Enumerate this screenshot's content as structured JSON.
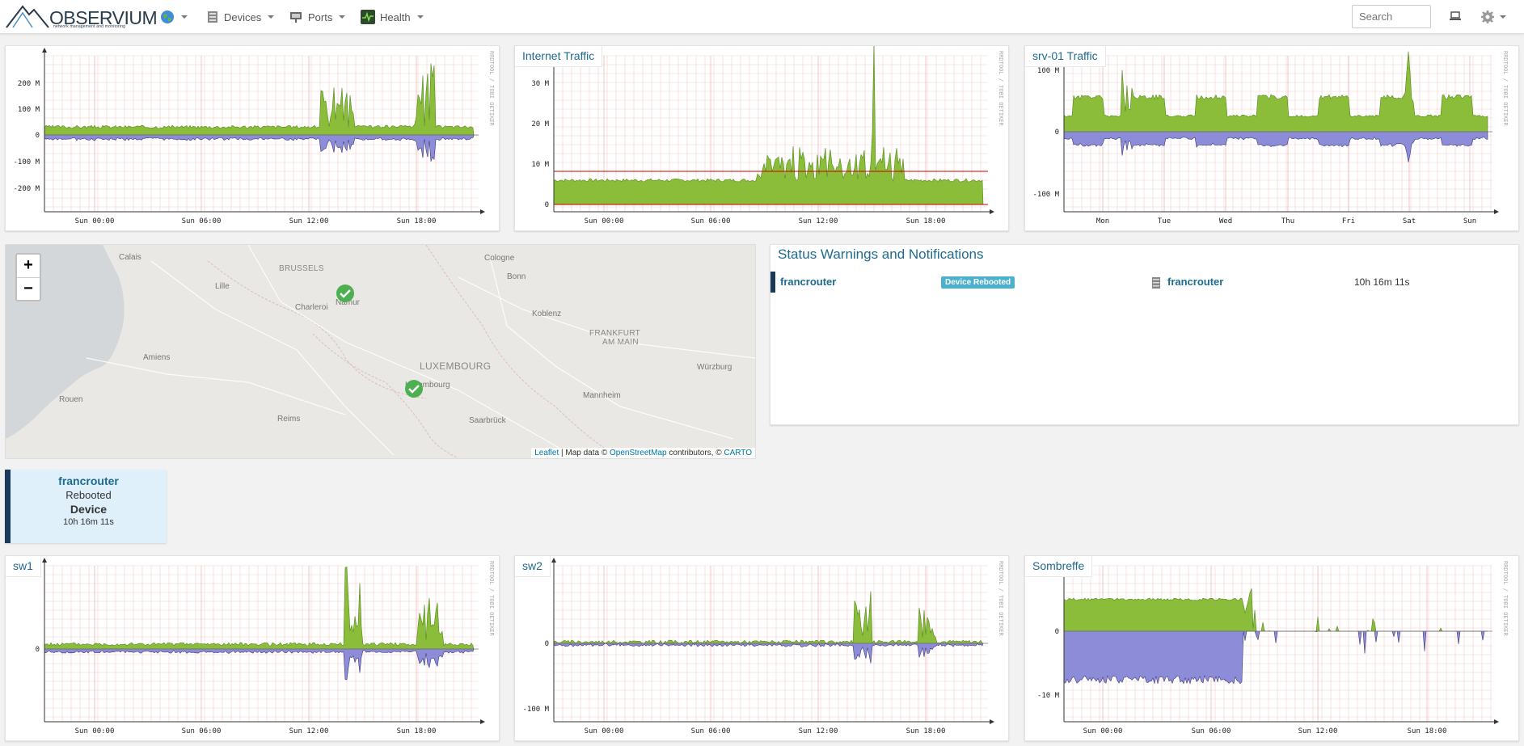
{
  "navbar": {
    "brand": "OBSERVIUM",
    "brand_sub": "network management and monitoring",
    "items": [
      {
        "label": "Devices"
      },
      {
        "label": "Ports"
      },
      {
        "label": "Health"
      }
    ],
    "search_placeholder": "Search"
  },
  "graphs": [
    {
      "title": "",
      "y_ticks": [
        "200 M",
        "100 M",
        "0",
        "-100 M",
        "-200 M"
      ],
      "x_ticks": [
        "Sun 00:00",
        "Sun 06:00",
        "Sun 12:00",
        "Sun 18:00"
      ],
      "watermark": "RRDTOOL / TOBI OETIKER"
    },
    {
      "title": "Internet Traffic",
      "y_ticks": [
        "30 M",
        "20 M",
        "10 M",
        "0"
      ],
      "x_ticks": [
        "Sun 00:00",
        "Sun 06:00",
        "Sun 12:00",
        "Sun 18:00"
      ],
      "watermark": "RRDTOOL / TOBI OETIKER"
    },
    {
      "title": "srv-01 Traffic",
      "y_ticks": [
        "100 M",
        "0",
        "-100 M"
      ],
      "x_ticks": [
        "Mon",
        "Tue",
        "Wed",
        "Thu",
        "Fri",
        "Sat",
        "Sun"
      ],
      "watermark": "RRDTOOL / TOBI OETIKER"
    },
    {
      "title": "sw1",
      "y_ticks": [
        "0"
      ],
      "x_ticks": [
        "Sun 00:00",
        "Sun 06:00",
        "Sun 12:00",
        "Sun 18:00"
      ],
      "watermark": "RRDTOOL / TOBI OETIKER"
    },
    {
      "title": "sw2",
      "y_ticks": [
        "0",
        "-100 M"
      ],
      "x_ticks": [
        "Sun 00:00",
        "Sun 06:00",
        "Sun 12:00",
        "Sun 18:00"
      ],
      "watermark": "RRDTOOL / TOBI OETIKER"
    },
    {
      "title": "Sombreffe",
      "y_ticks": [
        "0",
        "-10 M"
      ],
      "x_ticks": [
        "Sun 00:00",
        "Sun 06:00",
        "Sun 12:00",
        "Sun 18:00"
      ],
      "watermark": "RRDTOOL / TOBI OETIKER"
    }
  ],
  "map": {
    "zoom_in": "+",
    "zoom_out": "−",
    "cities": [
      "Calais",
      "BRUSSELS",
      "Cologne",
      "Bonn",
      "Lille",
      "Namur",
      "Charleroi",
      "Koblenz",
      "FRANKFURT",
      "AM MAIN",
      "Amiens",
      "LUXEMBOURG",
      "Würzburg",
      "Luxembourg",
      "Rouen",
      "Mannheim",
      "Reims",
      "Saarbrück"
    ],
    "attribution": {
      "leaflet": "Leaflet",
      "mapdata": " | Map data © ",
      "osm": "OpenStreetMap",
      "contrib": " contributors, © ",
      "carto": "CARTO"
    }
  },
  "status": {
    "title": "Status Warnings and Notifications",
    "rows": [
      {
        "device": "francrouter",
        "badge": "Device Rebooted",
        "entity": "francrouter",
        "time": "10h 16m 11s"
      }
    ]
  },
  "alert_box": {
    "device": "francrouter",
    "line1": "Rebooted",
    "line2": "Device",
    "time": "10h 16m 11s"
  },
  "colors": {
    "link": "#1f6a8f",
    "in_traffic": "#8bbd3a",
    "out_traffic": "#8d8cd8",
    "badge": "#4bb1cf",
    "alert_bar": "#1a3a5c"
  }
}
